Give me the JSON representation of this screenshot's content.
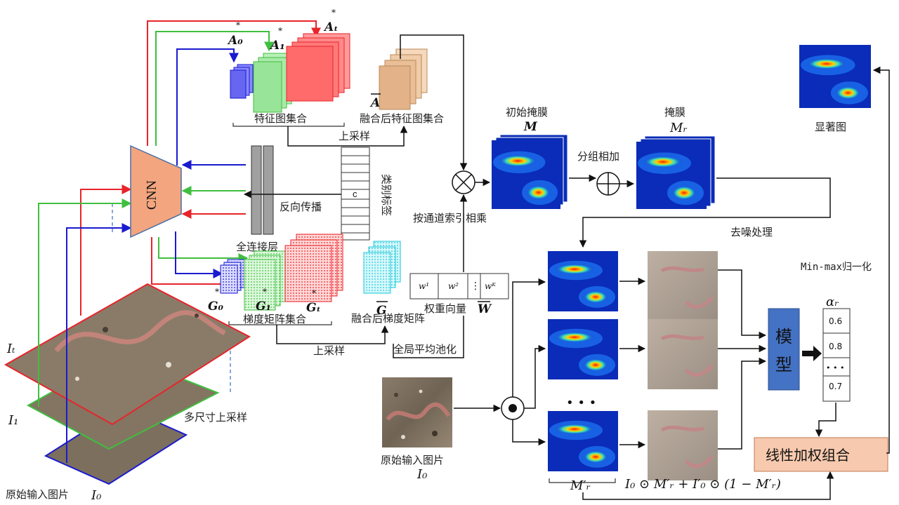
{
  "labels": {
    "cnn": "CNN",
    "feature_set": "特征图集合",
    "fused_feature_set": "融合后特征图集合",
    "upsample_top": "上采样",
    "upsample_bottom": "上采样",
    "backprop": "反向传播",
    "class_label": "类别标签",
    "class_c": "c",
    "fc_layer": "全连接层",
    "grad_set": "梯度矩阵集合",
    "fused_grad": "融合后梯度矩阵",
    "weight_vector": "权重向量",
    "gap": "全局平均池化",
    "channel_mult": "按通道索引相乘",
    "initial_mask": "初始掩膜",
    "mask": "掩膜",
    "group_add": "分组相加",
    "denoise": "去噪处理",
    "saliency": "显著图",
    "minmax": "Min-max归一化",
    "model": "模型",
    "linear_combo": "线性加权组合",
    "multi_upsample": "多尺寸上采样",
    "orig_input": "原始输入图片",
    "orig_input_i0": "原始输入图片",
    "ellipsis": "• • •"
  },
  "symbols": {
    "A0": "A₀",
    "A1": "A₁",
    "At": "Aₜ",
    "Abar": "A",
    "G0": "G₀",
    "G1": "G₁",
    "Gt": "Gₜ",
    "Gbar": "G",
    "Wbar": "W",
    "M": "M",
    "Mr": "Mᵣ",
    "Mr_prime": "M′ᵣ",
    "I0": "I₀",
    "I1": "I₁",
    "It": "Iₜ",
    "alpha": "αᵣ",
    "formula": "I₀ ⊙ M′ᵣ + I′₀ ⊙ (1 − M′ᵣ)",
    "star": "*"
  },
  "weights": [
    "w¹",
    "w²",
    "⋮",
    "wᴷ"
  ],
  "alpha_values": [
    "0.6",
    "0.8",
    "• • •",
    "0.7"
  ],
  "colors": {
    "red": "#e8242a",
    "green": "#3fbf3f",
    "blue": "#1a1ad0",
    "cnn_fill": "#f2a57e",
    "model_fill": "#4472c4",
    "combo_fill": "#f7c9ae"
  }
}
